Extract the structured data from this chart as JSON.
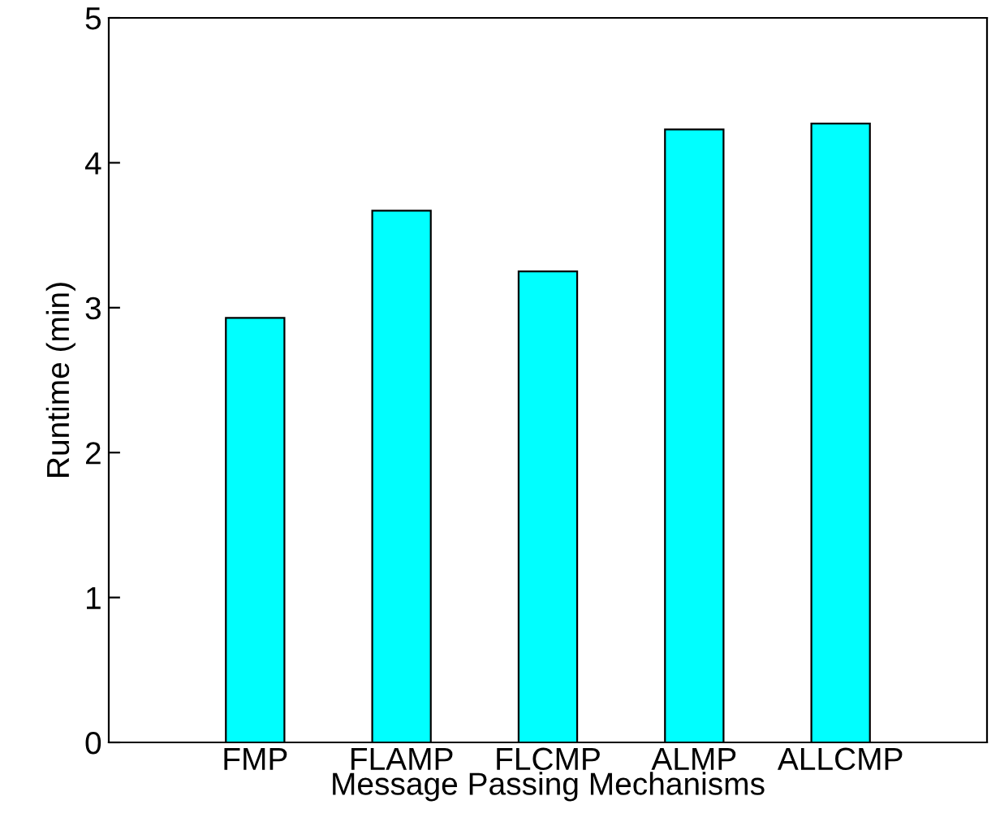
{
  "chart_data": {
    "type": "bar",
    "xlabel": "Message Passing Mechanisms",
    "ylabel": "Runtime (min)",
    "categories": [
      "FMP",
      "FLAMP",
      "FLCMP",
      "ALMP",
      "ALLCMP"
    ],
    "values": [
      2.93,
      3.67,
      3.25,
      4.23,
      4.27
    ],
    "color": "#00ffff",
    "ylim": [
      0,
      5
    ],
    "yticks": [
      0,
      1,
      2,
      3,
      4,
      5
    ],
    "grid": false,
    "legend": false
  }
}
